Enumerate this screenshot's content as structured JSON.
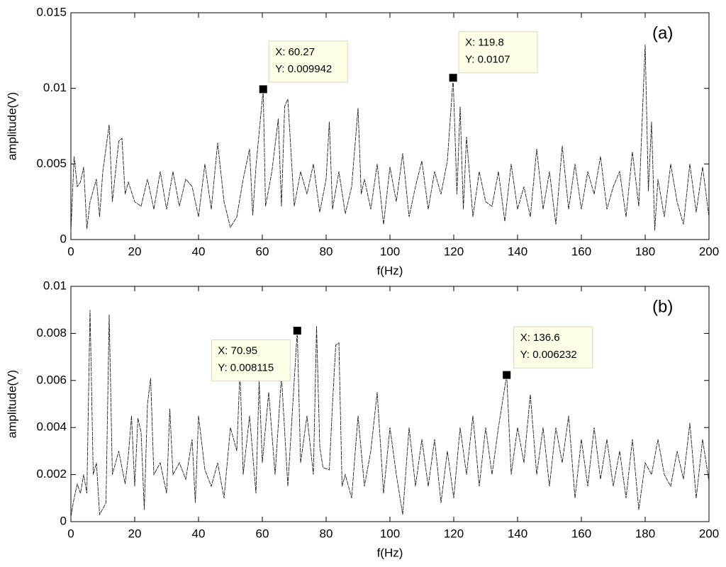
{
  "chart_data": [
    {
      "type": "line",
      "panel_label": "(a)",
      "xlabel": "f(Hz)",
      "ylabel": "amplitude(V)",
      "color": "#222222",
      "xlim": [
        0,
        200
      ],
      "ylim": [
        0,
        0.015
      ],
      "xticks": [
        0,
        20,
        40,
        60,
        80,
        100,
        120,
        140,
        160,
        180,
        200
      ],
      "yticks": [
        0,
        0.005,
        0.01,
        0.015
      ],
      "x": [
        0,
        1,
        2,
        3,
        4,
        5,
        6,
        8,
        9,
        10,
        12,
        13,
        15,
        16,
        17,
        18,
        20,
        22,
        24,
        26,
        28,
        30,
        32,
        34,
        36,
        38,
        40,
        42,
        44,
        46,
        48,
        50,
        52,
        54,
        56,
        57,
        58,
        60.27,
        61,
        63,
        65,
        66,
        67,
        68,
        70,
        72,
        74,
        76,
        78,
        80,
        81,
        82,
        84,
        86,
        88,
        90,
        91,
        92,
        94,
        96,
        98,
        100,
        102,
        104,
        106,
        108,
        110,
        112,
        114,
        116,
        118,
        119.8,
        121,
        122,
        123,
        124,
        126,
        128,
        130,
        132,
        134,
        136,
        138,
        140,
        142,
        144,
        146,
        148,
        150,
        152,
        154,
        156,
        158,
        160,
        162,
        164,
        166,
        168,
        170,
        172,
        174,
        176,
        178,
        180,
        181,
        182,
        183,
        184,
        186,
        188,
        190,
        192,
        194,
        196,
        198,
        200
      ],
      "values": [
        0.0005,
        0.0055,
        0.0035,
        0.0038,
        0.0048,
        0.0007,
        0.0025,
        0.004,
        0.0015,
        0.0045,
        0.0076,
        0.0025,
        0.0065,
        0.0067,
        0.003,
        0.0038,
        0.0025,
        0.0022,
        0.004,
        0.002,
        0.0045,
        0.002,
        0.0045,
        0.0022,
        0.004,
        0.0035,
        0.0015,
        0.005,
        0.002,
        0.0064,
        0.0025,
        0.0008,
        0.0015,
        0.004,
        0.006,
        0.0016,
        0.0048,
        0.009942,
        0.0022,
        0.0045,
        0.008,
        0.0022,
        0.0088,
        0.0093,
        0.0022,
        0.0045,
        0.003,
        0.005,
        0.0018,
        0.004,
        0.0078,
        0.002,
        0.0045,
        0.0017,
        0.0035,
        0.0087,
        0.003,
        0.004,
        0.002,
        0.005,
        0.001,
        0.0048,
        0.0025,
        0.0057,
        0.0015,
        0.0035,
        0.0052,
        0.002,
        0.0045,
        0.003,
        0.0052,
        0.0107,
        0.003,
        0.0088,
        0.002,
        0.0068,
        0.0015,
        0.0045,
        0.0025,
        0.0022,
        0.0045,
        0.0012,
        0.005,
        0.002,
        0.0035,
        0.0015,
        0.006,
        0.002,
        0.0045,
        0.001,
        0.0062,
        0.002,
        0.005,
        0.002,
        0.0045,
        0.003,
        0.0055,
        0.002,
        0.0035,
        0.0045,
        0.0015,
        0.0058,
        0.0022,
        0.0129,
        0.0032,
        0.0078,
        0.0006,
        0.004,
        0.0015,
        0.005,
        0.0025,
        0.001,
        0.005,
        0.0018,
        0.0048,
        0.0015
      ],
      "datatips": [
        {
          "x": 60.27,
          "y": 0.009942,
          "label_x": "X: 60.27",
          "label_y": "Y: 0.009942"
        },
        {
          "x": 119.8,
          "y": 0.0107,
          "label_x": "X: 119.8",
          "label_y": "Y: 0.0107"
        }
      ]
    },
    {
      "type": "line",
      "panel_label": "(b)",
      "xlabel": "f(Hz)",
      "ylabel": "amplitude(V)",
      "color": "#222222",
      "xlim": [
        0,
        200
      ],
      "ylim": [
        0,
        0.01
      ],
      "xticks": [
        0,
        20,
        40,
        60,
        80,
        100,
        120,
        140,
        160,
        180,
        200
      ],
      "yticks": [
        0,
        0.002,
        0.004,
        0.006,
        0.008,
        0.01
      ],
      "x": [
        0,
        1,
        2,
        3,
        4,
        5,
        6,
        7,
        8,
        9,
        11,
        12,
        13,
        15,
        17,
        18,
        19,
        20,
        21,
        22,
        23,
        24,
        25,
        26,
        28,
        30,
        31,
        32,
        34,
        36,
        38,
        39,
        40,
        42,
        44,
        46,
        48,
        50,
        52,
        53,
        54,
        56,
        58,
        59,
        60,
        62,
        64,
        66,
        68,
        70.95,
        72,
        74,
        76,
        77,
        78,
        79,
        81,
        82,
        83,
        84,
        85,
        86,
        88,
        90,
        92,
        94,
        96,
        98,
        100,
        102,
        104,
        106,
        108,
        110,
        112,
        114,
        116,
        118,
        120,
        122,
        124,
        126,
        128,
        130,
        132,
        134,
        136.6,
        138,
        140,
        142,
        144,
        146,
        148,
        150,
        152,
        154,
        156,
        158,
        160,
        162,
        164,
        166,
        168,
        170,
        172,
        174,
        176,
        178,
        180,
        182,
        184,
        186,
        188,
        190,
        192,
        194,
        196,
        198,
        200
      ],
      "values": [
        0.0002,
        0.001,
        0.0016,
        0.0012,
        0.002,
        0.0012,
        0.009,
        0.002,
        0.0025,
        0.0003,
        0.0008,
        0.0088,
        0.002,
        0.003,
        0.0016,
        0.0028,
        0.0045,
        0.0015,
        0.0044,
        0.0038,
        0.0005,
        0.005,
        0.0061,
        0.002,
        0.0025,
        0.0012,
        0.0048,
        0.002,
        0.0025,
        0.0018,
        0.0035,
        0.0008,
        0.0045,
        0.0022,
        0.0015,
        0.0025,
        0.001,
        0.004,
        0.003,
        0.0065,
        0.002,
        0.0045,
        0.0012,
        0.006,
        0.0025,
        0.0055,
        0.002,
        0.0062,
        0.0015,
        0.008115,
        0.0025,
        0.0045,
        0.002,
        0.0083,
        0.0032,
        0.0023,
        0.0022,
        0.005,
        0.0075,
        0.0076,
        0.0015,
        0.002,
        0.001,
        0.0045,
        0.0015,
        0.003,
        0.0055,
        0.0012,
        0.004,
        0.002,
        0.0003,
        0.004,
        0.0015,
        0.0035,
        0.0015,
        0.0035,
        0.0008,
        0.003,
        0.001,
        0.004,
        0.002,
        0.0045,
        0.0015,
        0.004,
        0.002,
        0.004,
        0.006232,
        0.002,
        0.004,
        0.0025,
        0.0054,
        0.002,
        0.004,
        0.0015,
        0.004,
        0.0025,
        0.0045,
        0.001,
        0.0035,
        0.0015,
        0.004,
        0.0018,
        0.0035,
        0.0015,
        0.003,
        0.001,
        0.0035,
        0.0005,
        0.0025,
        0.002,
        0.0035,
        0.002,
        0.0015,
        0.003,
        0.0018,
        0.0042,
        0.001,
        0.0035,
        0.0017
      ],
      "datatips": [
        {
          "x": 70.95,
          "y": 0.008115,
          "label_x": "X: 70.95",
          "label_y": "Y: 0.008115"
        },
        {
          "x": 136.6,
          "y": 0.006232,
          "label_x": "X: 136.6",
          "label_y": "Y: 0.006232"
        }
      ]
    }
  ]
}
